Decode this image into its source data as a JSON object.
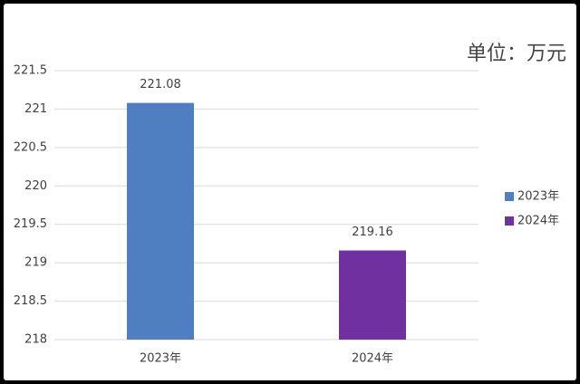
{
  "chart_data": {
    "type": "bar",
    "subtitle": "单位：万元",
    "categories": [
      "2023年",
      "2024年"
    ],
    "values": [
      221.08,
      219.16
    ],
    "colors": [
      "#4f7fc0",
      "#7030a0"
    ],
    "ylim": [
      218,
      221.5
    ],
    "yticks": [
      218,
      218.5,
      219,
      219.5,
      220,
      220.5,
      221,
      221.5
    ],
    "grid": true,
    "legend": "right"
  }
}
